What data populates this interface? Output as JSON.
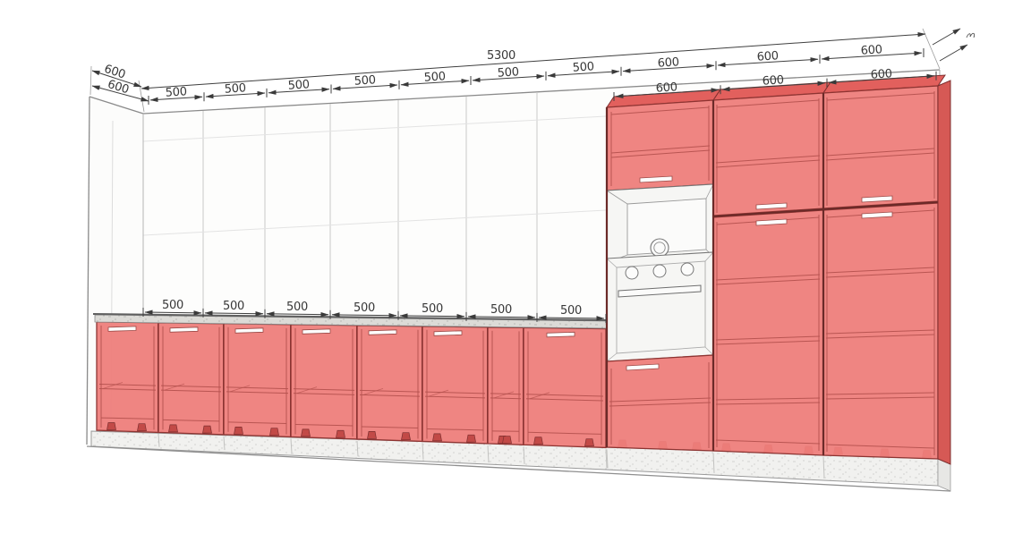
{
  "drawing": {
    "dims": {
      "overall": "5300",
      "wall_top_segments": [
        "500",
        "500",
        "500",
        "500",
        "500",
        "500",
        "500",
        "600",
        "600",
        "600"
      ],
      "left_depth": [
        "600",
        "600"
      ],
      "counter_segments": [
        "500",
        "500",
        "500",
        "500",
        "500",
        "500",
        "500"
      ],
      "tall_segments": [
        "600",
        "600",
        "600"
      ]
    },
    "colors": {
      "cabinet_red": "#ee7e7b",
      "cabinet_red_top": "#e2605d",
      "cabinet_edge_dark": "#6b2a28",
      "appliance_white": "#f6f6f4",
      "counter_gray": "#dcdbd7",
      "plinth_gray": "#f1f1ef",
      "outline_gray": "#8a8a8a",
      "dim_text": "#3a3a3a"
    }
  }
}
